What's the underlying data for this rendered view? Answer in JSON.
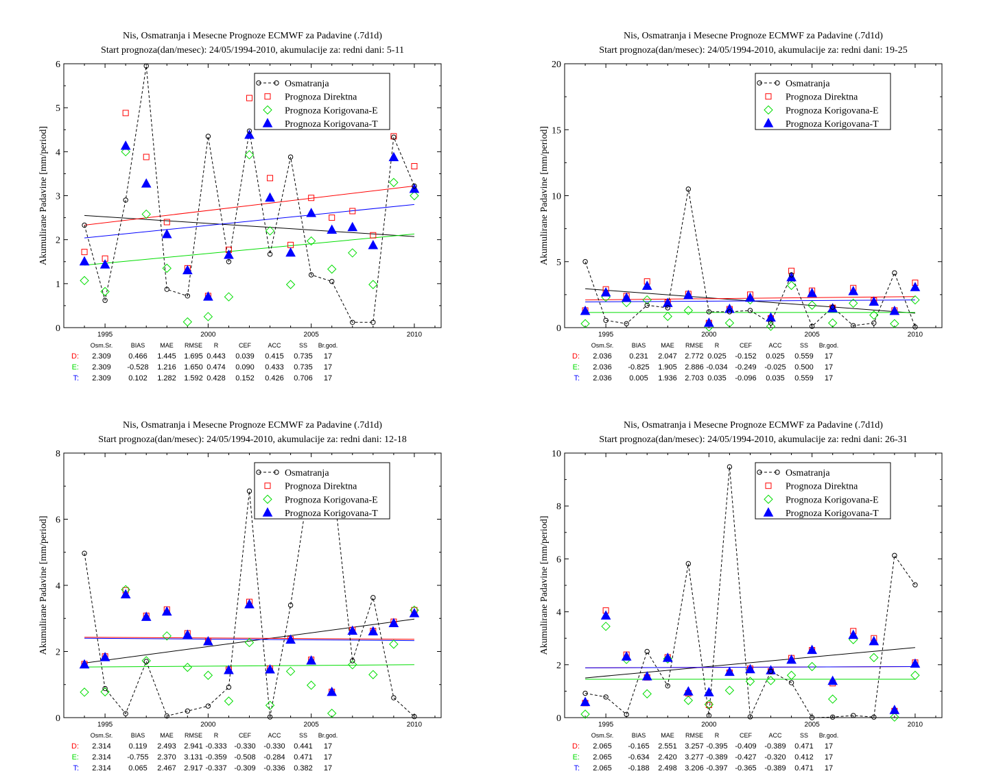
{
  "stats_header": [
    "Osm.Sr.",
    "BIAS",
    "MAE",
    "RMSE",
    "R",
    "CEF",
    "ACC",
    "SS",
    "Br.god."
  ],
  "legend_labels": [
    "Osmatranja",
    "Prognoza Direktna",
    "Prognoza Korigovana-E",
    "Prognoza Korigovana-T"
  ],
  "colors": {
    "obs": "#000000",
    "direct": "#ff0000",
    "corrE": "#00dd00",
    "corrT": "#0000ff"
  },
  "chart_data": [
    {
      "type": "scatter",
      "title": "Nis, Osmatranja i Mesecne Prognoze ECMWF za Padavine (.7d1d)",
      "subtitle": "Start prognoza(dan/mesec): 24/05/1994-2010, akumulacije za: redni dani: 5-11",
      "ylabel": "Akumulirane Padavine [mm/period]",
      "ylim": [
        0,
        6
      ],
      "yticks": [
        "0",
        "1",
        "2",
        "3",
        "4",
        "5",
        "6"
      ],
      "xlim": [
        1993,
        2011.3
      ],
      "xticks": [
        "1995",
        "2000",
        "2005",
        "2010"
      ],
      "x": [
        1994,
        1995,
        1996,
        1997,
        1998,
        1999,
        2000,
        2001,
        2002,
        2003,
        2004,
        2005,
        2006,
        2007,
        2008,
        2009,
        2010
      ],
      "series": [
        {
          "name": "Osmatranja",
          "values": [
            2.33,
            0.62,
            2.9,
            5.95,
            0.87,
            0.72,
            4.35,
            1.5,
            4.47,
            1.67,
            3.88,
            1.2,
            1.05,
            0.12,
            0.12,
            4.33,
            3.22
          ],
          "trend": [
            2.55,
            2.07
          ]
        },
        {
          "name": "Prognoza Direktna",
          "values": [
            1.72,
            1.57,
            4.88,
            3.88,
            2.4,
            1.35,
            0.72,
            1.77,
            5.22,
            3.4,
            1.88,
            2.95,
            2.5,
            2.65,
            2.1,
            4.35,
            3.67
          ],
          "trend": [
            2.33,
            3.22
          ]
        },
        {
          "name": "Prognoza Korigovana-E",
          "values": [
            1.07,
            0.82,
            4.0,
            2.58,
            1.35,
            0.13,
            0.25,
            0.7,
            3.93,
            2.2,
            0.98,
            1.97,
            1.33,
            1.7,
            0.98,
            3.3,
            3.0
          ],
          "trend": [
            1.42,
            2.13
          ]
        },
        {
          "name": "Prognoza Korigovana-T",
          "values": [
            1.5,
            1.43,
            4.13,
            3.27,
            2.12,
            1.3,
            0.7,
            1.65,
            4.38,
            2.95,
            1.7,
            2.6,
            2.22,
            2.28,
            1.87,
            3.87,
            3.15
          ],
          "trend": [
            2.04,
            2.8
          ]
        }
      ],
      "stats": [
        {
          "label": "D:",
          "values": [
            "2.309",
            "0.466",
            "1.445",
            "1.695",
            "0.443",
            "0.039",
            "0.415",
            "0.735",
            "17"
          ]
        },
        {
          "label": "E:",
          "values": [
            "2.309",
            "-0.528",
            "1.216",
            "1.650",
            "0.474",
            "0.090",
            "0.433",
            "0.735",
            "17"
          ]
        },
        {
          "label": "T:",
          "values": [
            "2.309",
            "0.102",
            "1.282",
            "1.592",
            "0.428",
            "0.152",
            "0.426",
            "0.706",
            "17"
          ]
        }
      ]
    },
    {
      "type": "scatter",
      "title": "Nis, Osmatranja i Mesecne Prognoze ECMWF za Padavine (.7d1d)",
      "subtitle": "Start prognoza(dan/mesec): 24/05/1994-2010, akumulacije za: redni dani: 19-25",
      "ylabel": "Akumulirane Padavine [mm/period]",
      "ylim": [
        0,
        20
      ],
      "yticks": [
        "0",
        "5",
        "10",
        "15",
        "20"
      ],
      "xlim": [
        1993,
        2011.3
      ],
      "xticks": [
        "1995",
        "2000",
        "2005",
        "2010"
      ],
      "x": [
        1994,
        1995,
        1996,
        1997,
        1998,
        1999,
        2000,
        2001,
        2002,
        2003,
        2004,
        2005,
        2006,
        2007,
        2008,
        2009,
        2010
      ],
      "series": [
        {
          "name": "Osmatranja",
          "values": [
            5.0,
            0.55,
            0.3,
            1.7,
            1.5,
            10.5,
            1.2,
            1.2,
            1.3,
            0.35,
            4.0,
            0.1,
            1.55,
            0.15,
            0.35,
            4.15,
            0.05
          ],
          "trend": [
            2.95,
            1.1
          ]
        },
        {
          "name": "Prognoza Direktna",
          "values": [
            1.3,
            2.9,
            2.4,
            3.5,
            1.9,
            2.55,
            0.35,
            1.4,
            2.5,
            0.7,
            4.3,
            2.8,
            1.5,
            3.0,
            2.05,
            1.3,
            3.4
          ],
          "trend": [
            2.1,
            2.35
          ]
        },
        {
          "name": "Prognoza Korigovana-E",
          "values": [
            0.3,
            2.3,
            1.9,
            2.1,
            0.85,
            1.3,
            0.05,
            0.35,
            2.1,
            0.1,
            3.2,
            1.7,
            0.35,
            1.85,
            0.95,
            0.3,
            2.1
          ],
          "trend": [
            1.15,
            1.15
          ]
        },
        {
          "name": "Prognoza Korigovana-T",
          "values": [
            1.25,
            2.65,
            2.25,
            3.15,
            1.85,
            2.45,
            0.35,
            1.4,
            2.25,
            0.75,
            3.8,
            2.6,
            1.45,
            2.75,
            1.95,
            1.25,
            3.05
          ],
          "trend": [
            1.95,
            2.1
          ]
        }
      ],
      "stats": [
        {
          "label": "D:",
          "values": [
            "2.036",
            "0.231",
            "2.047",
            "2.772",
            "0.025",
            "-0.152",
            "0.025",
            "0.559",
            "17"
          ]
        },
        {
          "label": "E:",
          "values": [
            "2.036",
            "-0.825",
            "1.905",
            "2.886",
            "-0.034",
            "-0.249",
            "-0.025",
            "0.500",
            "17"
          ]
        },
        {
          "label": "T:",
          "values": [
            "2.036",
            "0.005",
            "1.936",
            "2.703",
            "0.035",
            "-0.096",
            "0.035",
            "0.559",
            "17"
          ]
        }
      ]
    },
    {
      "type": "scatter",
      "title": "Nis, Osmatranja i Mesecne Prognoze ECMWF za Padavine (.7d1d)",
      "subtitle": "Start prognoza(dan/mesec): 24/05/1994-2010, akumulacije za: redni dani: 12-18",
      "ylabel": "Akumulirane Padavine [mm/period]",
      "ylim": [
        0,
        8
      ],
      "yticks": [
        "0",
        "2",
        "4",
        "6",
        "8"
      ],
      "xlim": [
        1993,
        2011.3
      ],
      "xticks": [
        "1995",
        "2000",
        "2005",
        "2010"
      ],
      "x": [
        1994,
        1995,
        1996,
        1997,
        1998,
        1999,
        2000,
        2001,
        2002,
        2003,
        2004,
        2005,
        2006,
        2007,
        2008,
        2009,
        2010
      ],
      "series": [
        {
          "name": "Osmatranja",
          "values": [
            4.97,
            0.88,
            0.12,
            1.7,
            0.05,
            0.2,
            0.35,
            0.92,
            6.85,
            0.02,
            3.4,
            7.5,
            7.5,
            1.72,
            3.63,
            0.6,
            0.03
          ],
          "trend": [
            1.65,
            2.98
          ]
        },
        {
          "name": "Prognoza Direktna",
          "values": [
            1.62,
            1.85,
            3.85,
            3.08,
            3.27,
            2.55,
            2.32,
            1.45,
            3.5,
            1.48,
            2.37,
            1.75,
            0.78,
            2.65,
            2.62,
            2.9,
            3.25
          ],
          "trend": [
            2.43,
            2.37
          ]
        },
        {
          "name": "Prognoza Korigovana-E",
          "values": [
            0.77,
            0.78,
            3.87,
            1.72,
            2.47,
            1.52,
            1.28,
            0.5,
            2.27,
            0.37,
            1.4,
            0.98,
            0.13,
            1.6,
            1.3,
            2.22,
            3.25
          ],
          "trend": [
            1.53,
            1.6
          ]
        },
        {
          "name": "Prognoza Korigovana-T",
          "values": [
            1.6,
            1.82,
            3.72,
            3.04,
            3.2,
            2.5,
            2.3,
            1.43,
            3.42,
            1.45,
            2.35,
            1.72,
            0.77,
            2.62,
            2.6,
            2.85,
            3.15
          ],
          "trend": [
            2.4,
            2.33
          ]
        }
      ],
      "stats": [
        {
          "label": "D:",
          "values": [
            "2.314",
            "0.119",
            "2.493",
            "2.941",
            "-0.333",
            "-0.330",
            "-0.330",
            "0.441",
            "17"
          ]
        },
        {
          "label": "E:",
          "values": [
            "2.314",
            "-0.755",
            "2.370",
            "3.131",
            "-0.359",
            "-0.508",
            "-0.284",
            "0.471",
            "17"
          ]
        },
        {
          "label": "T:",
          "values": [
            "2.314",
            "0.065",
            "2.467",
            "2.917",
            "-0.337",
            "-0.309",
            "-0.336",
            "0.382",
            "17"
          ]
        }
      ]
    },
    {
      "type": "scatter",
      "title": "Nis, Osmatranja i Mesecne Prognoze ECMWF za Padavine (.7d1d)",
      "subtitle": "Start prognoza(dan/mesec): 24/05/1994-2010, akumulacije za: redni dani: 26-31",
      "ylabel": "Akumulirane Padavine [mm/period]",
      "ylim": [
        0,
        10
      ],
      "yticks": [
        "0",
        "2",
        "4",
        "6",
        "8",
        "10"
      ],
      "xlim": [
        1993,
        2011.3
      ],
      "xticks": [
        "1995",
        "2000",
        "2005",
        "2010"
      ],
      "x": [
        1994,
        1995,
        1996,
        1997,
        1998,
        1999,
        2000,
        2001,
        2002,
        2003,
        2004,
        2005,
        2006,
        2007,
        2008,
        2009,
        2010
      ],
      "series": [
        {
          "name": "Osmatranja",
          "values": [
            0.92,
            0.78,
            0.12,
            2.5,
            1.2,
            5.82,
            0.08,
            9.48,
            0.03,
            1.75,
            1.32,
            0.0,
            0.02,
            0.08,
            0.02,
            6.13,
            5.02
          ],
          "trend": [
            1.5,
            2.65
          ]
        },
        {
          "name": "Prognoza Direktna",
          "values": [
            0.55,
            4.05,
            2.38,
            1.52,
            2.28,
            0.92,
            0.48,
            1.7,
            1.85,
            1.75,
            2.25,
            2.55,
            1.3,
            3.27,
            3.0,
            0.25,
            2.08
          ],
          "trend": [
            1.88,
            1.93
          ]
        },
        {
          "name": "Prognoza Korigovana-E",
          "values": [
            0.13,
            3.45,
            2.2,
            0.9,
            2.22,
            0.65,
            0.5,
            1.03,
            1.37,
            1.4,
            1.6,
            1.93,
            0.7,
            2.95,
            2.27,
            0.02,
            1.6
          ],
          "trend": [
            1.45,
            1.45
          ]
        },
        {
          "name": "Prognoza Korigovana-T",
          "values": [
            0.58,
            3.85,
            2.3,
            1.55,
            2.25,
            0.98,
            0.95,
            1.72,
            1.82,
            1.78,
            2.18,
            2.55,
            1.38,
            3.12,
            2.88,
            0.28,
            2.03
          ],
          "trend": [
            1.88,
            1.93
          ]
        }
      ],
      "stats": [
        {
          "label": "D:",
          "values": [
            "2.065",
            "-0.165",
            "2.551",
            "3.257",
            "-0.395",
            "-0.409",
            "-0.389",
            "0.471",
            "17"
          ]
        },
        {
          "label": "E:",
          "values": [
            "2.065",
            "-0.634",
            "2.420",
            "3.277",
            "-0.389",
            "-0.427",
            "-0.320",
            "0.412",
            "17"
          ]
        },
        {
          "label": "T:",
          "values": [
            "2.065",
            "-0.188",
            "2.498",
            "3.206",
            "-0.397",
            "-0.365",
            "-0.389",
            "0.471",
            "17"
          ]
        }
      ]
    }
  ]
}
